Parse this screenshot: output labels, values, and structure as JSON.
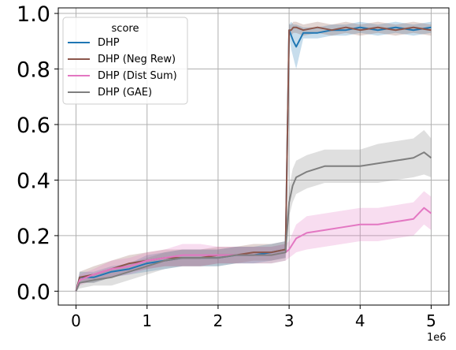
{
  "chart_data": {
    "type": "line",
    "title": "",
    "xlabel": "",
    "ylabel": "",
    "x_scale_label": "1e6",
    "xlim": [
      -0.25,
      5.25
    ],
    "ylim": [
      -0.05,
      1.02
    ],
    "x_ticks": [
      0,
      1,
      2,
      3,
      4,
      5
    ],
    "x_tick_labels": [
      "0",
      "1",
      "2",
      "3",
      "4",
      "5"
    ],
    "y_ticks": [
      0.0,
      0.2,
      0.4,
      0.6,
      0.8,
      1.0
    ],
    "y_tick_labels": [
      "0.0",
      "0.2",
      "0.4",
      "0.6",
      "0.8",
      "1.0"
    ],
    "grid": true,
    "legend": {
      "title": "score",
      "position": "top-left"
    },
    "series": [
      {
        "name": "DHP",
        "color": "#1f77b4",
        "x": [
          0,
          0.05,
          0.25,
          0.5,
          0.75,
          1.0,
          1.25,
          1.5,
          1.75,
          2.0,
          2.25,
          2.5,
          2.75,
          2.95,
          3.0,
          3.03,
          3.06,
          3.1,
          3.2,
          3.4,
          3.6,
          3.8,
          4.0,
          4.25,
          4.5,
          4.75,
          5.0
        ],
        "y": [
          0.0,
          0.05,
          0.05,
          0.07,
          0.08,
          0.1,
          0.11,
          0.12,
          0.12,
          0.12,
          0.13,
          0.13,
          0.14,
          0.15,
          0.94,
          0.92,
          0.9,
          0.88,
          0.93,
          0.93,
          0.94,
          0.94,
          0.95,
          0.94,
          0.95,
          0.94,
          0.95
        ],
        "band": [
          0.0,
          0.02,
          0.02,
          0.02,
          0.02,
          0.03,
          0.03,
          0.03,
          0.03,
          0.03,
          0.03,
          0.03,
          0.03,
          0.03,
          0.02,
          0.05,
          0.06,
          0.08,
          0.02,
          0.02,
          0.02,
          0.02,
          0.02,
          0.02,
          0.02,
          0.02,
          0.02
        ]
      },
      {
        "name": "DHP (Neg Rew)",
        "color": "#8c564b",
        "x": [
          0,
          0.05,
          0.25,
          0.5,
          0.75,
          1.0,
          1.25,
          1.5,
          1.75,
          2.0,
          2.25,
          2.5,
          2.75,
          2.95,
          3.0,
          3.03,
          3.06,
          3.1,
          3.2,
          3.4,
          3.6,
          3.8,
          4.0,
          4.25,
          4.5,
          4.75,
          5.0
        ],
        "y": [
          0.0,
          0.05,
          0.06,
          0.08,
          0.1,
          0.11,
          0.12,
          0.12,
          0.12,
          0.13,
          0.13,
          0.14,
          0.14,
          0.15,
          0.94,
          0.94,
          0.95,
          0.95,
          0.94,
          0.95,
          0.94,
          0.95,
          0.94,
          0.95,
          0.94,
          0.95,
          0.94
        ],
        "band": [
          0.0,
          0.02,
          0.03,
          0.03,
          0.03,
          0.03,
          0.03,
          0.03,
          0.03,
          0.03,
          0.03,
          0.03,
          0.03,
          0.03,
          0.02,
          0.02,
          0.02,
          0.02,
          0.02,
          0.02,
          0.02,
          0.02,
          0.02,
          0.02,
          0.02,
          0.02,
          0.02
        ]
      },
      {
        "name": "DHP (Dist Sum)",
        "color": "#e377c2",
        "x": [
          0,
          0.05,
          0.25,
          0.5,
          0.75,
          1.0,
          1.25,
          1.5,
          1.75,
          2.0,
          2.25,
          2.5,
          2.75,
          2.95,
          3.0,
          3.1,
          3.25,
          3.5,
          3.75,
          4.0,
          4.25,
          4.5,
          4.75,
          4.9,
          5.0
        ],
        "y": [
          0.0,
          0.04,
          0.06,
          0.08,
          0.09,
          0.11,
          0.12,
          0.13,
          0.13,
          0.13,
          0.13,
          0.13,
          0.13,
          0.14,
          0.15,
          0.19,
          0.21,
          0.22,
          0.23,
          0.24,
          0.24,
          0.25,
          0.26,
          0.3,
          0.28
        ],
        "band": [
          0.0,
          0.02,
          0.02,
          0.03,
          0.03,
          0.03,
          0.03,
          0.04,
          0.04,
          0.03,
          0.03,
          0.03,
          0.03,
          0.03,
          0.03,
          0.05,
          0.06,
          0.06,
          0.06,
          0.06,
          0.06,
          0.06,
          0.06,
          0.06,
          0.06
        ]
      },
      {
        "name": "DHP (GAE)",
        "color": "#7f7f7f",
        "x": [
          0,
          0.05,
          0.25,
          0.5,
          0.75,
          1.0,
          1.25,
          1.5,
          1.75,
          2.0,
          2.25,
          2.5,
          2.75,
          2.95,
          3.0,
          3.05,
          3.1,
          3.25,
          3.5,
          3.75,
          4.0,
          4.25,
          4.5,
          4.75,
          4.9,
          5.0
        ],
        "y": [
          0.0,
          0.03,
          0.04,
          0.05,
          0.07,
          0.09,
          0.11,
          0.12,
          0.12,
          0.12,
          0.13,
          0.13,
          0.13,
          0.14,
          0.32,
          0.38,
          0.41,
          0.43,
          0.45,
          0.45,
          0.45,
          0.46,
          0.47,
          0.48,
          0.5,
          0.48
        ],
        "band": [
          0.0,
          0.02,
          0.02,
          0.03,
          0.03,
          0.03,
          0.03,
          0.03,
          0.03,
          0.03,
          0.03,
          0.03,
          0.03,
          0.03,
          0.05,
          0.06,
          0.06,
          0.06,
          0.06,
          0.06,
          0.06,
          0.07,
          0.07,
          0.07,
          0.08,
          0.07
        ]
      }
    ]
  }
}
